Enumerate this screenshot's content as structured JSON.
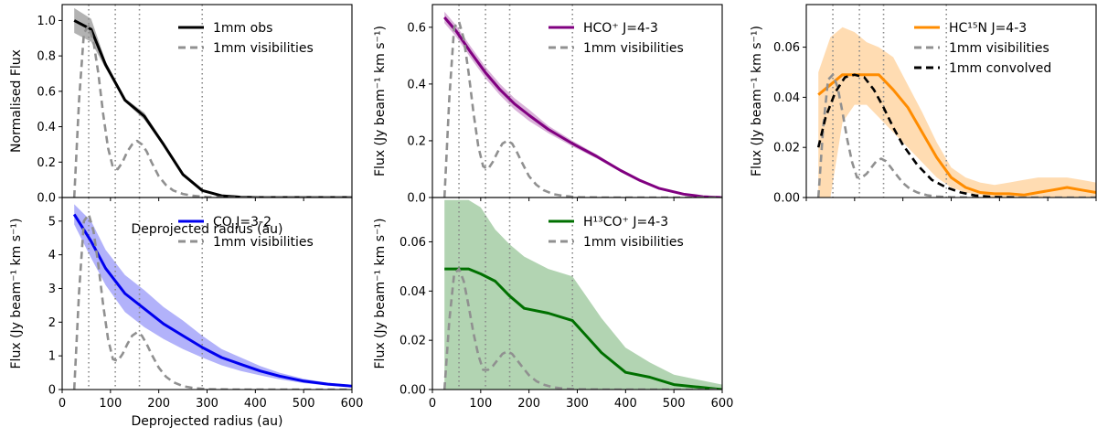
{
  "chart_data": [
    {
      "id": "obs",
      "type": "line",
      "xlabel": "Deprojected radius (au)",
      "ylabel": "Normalised Flux",
      "xlim": [
        0,
        600
      ],
      "ylim": [
        0,
        1.09
      ],
      "yticks": [
        0.0,
        0.2,
        0.4,
        0.6,
        0.8,
        1.0
      ],
      "ytick_labels": [
        "0.0",
        "0.2",
        "0.4",
        "0.6",
        "0.8",
        "1.0"
      ],
      "vlines": [
        55,
        110,
        160,
        290
      ],
      "legend": "top-right",
      "series": [
        {
          "name": "1mm obs",
          "color": "#000000",
          "style": "solid",
          "x": [
            25,
            60,
            90,
            130,
            170,
            210,
            250,
            290,
            330,
            370,
            410,
            450,
            500,
            550,
            600
          ],
          "y": [
            1.0,
            0.95,
            0.75,
            0.55,
            0.46,
            0.3,
            0.13,
            0.04,
            0.01,
            0.002,
            0,
            0,
            0,
            0,
            0
          ],
          "lo": [
            0.93,
            0.88,
            0.73,
            0.54,
            0.44,
            0.29,
            0.12,
            0.035,
            0.008,
            0.001,
            0,
            0,
            0,
            0,
            0
          ],
          "hi": [
            1.07,
            1.01,
            0.77,
            0.56,
            0.48,
            0.31,
            0.14,
            0.045,
            0.012,
            0.003,
            0,
            0,
            0,
            0,
            0
          ]
        },
        {
          "name": "1mm visibilities",
          "color": "#909090",
          "style": "dashed",
          "x": [
            25,
            35,
            45,
            55,
            65,
            75,
            85,
            95,
            105,
            115,
            125,
            135,
            145,
            155,
            165,
            175,
            185,
            200,
            215,
            230,
            250,
            270,
            300,
            350,
            400,
            600
          ],
          "y": [
            0.0,
            0.55,
            0.93,
            0.97,
            0.88,
            0.7,
            0.47,
            0.28,
            0.17,
            0.16,
            0.2,
            0.26,
            0.3,
            0.32,
            0.3,
            0.26,
            0.2,
            0.12,
            0.07,
            0.04,
            0.02,
            0.01,
            0.002,
            0,
            0,
            0
          ]
        }
      ]
    },
    {
      "id": "co",
      "type": "line",
      "xlabel": "Deprojected radius (au)",
      "ylabel": "Flux (Jy beam⁻¹ km s⁻¹)",
      "xlim": [
        0,
        600
      ],
      "ylim": [
        0,
        5.7
      ],
      "yticks": [
        0,
        1,
        2,
        3,
        4,
        5
      ],
      "ytick_labels": [
        "0",
        "1",
        "2",
        "3",
        "4",
        "5"
      ],
      "xticks": [
        0,
        100,
        200,
        300,
        400,
        500,
        600
      ],
      "xtick_labels": [
        "0",
        "100",
        "200",
        "300",
        "400",
        "500",
        "600"
      ],
      "vlines": [
        55,
        110,
        160,
        290
      ],
      "legend": "top-right",
      "series": [
        {
          "name": "CO J=3-2",
          "color": "#0000ee",
          "style": "solid",
          "x": [
            25,
            60,
            90,
            130,
            170,
            210,
            250,
            290,
            330,
            370,
            410,
            450,
            500,
            550,
            600
          ],
          "y": [
            5.2,
            4.4,
            3.6,
            2.85,
            2.4,
            1.95,
            1.6,
            1.25,
            0.95,
            0.75,
            0.55,
            0.4,
            0.25,
            0.16,
            0.1
          ],
          "lo": [
            4.9,
            3.9,
            3.1,
            2.3,
            1.85,
            1.5,
            1.2,
            0.95,
            0.72,
            0.55,
            0.42,
            0.3,
            0.19,
            0.12,
            0.07
          ],
          "hi": [
            5.5,
            5.0,
            4.15,
            3.4,
            2.95,
            2.45,
            2.05,
            1.6,
            1.2,
            0.95,
            0.7,
            0.5,
            0.32,
            0.2,
            0.13
          ]
        },
        {
          "name": "1mm visibilities",
          "color": "#909090",
          "style": "dashed",
          "x": [
            25,
            35,
            45,
            55,
            65,
            75,
            85,
            95,
            105,
            115,
            125,
            135,
            145,
            155,
            165,
            175,
            185,
            200,
            215,
            230,
            250,
            270,
            300,
            350,
            400,
            600
          ],
          "y": [
            0.0,
            2.9,
            5.0,
            5.2,
            4.7,
            3.7,
            2.5,
            1.5,
            0.9,
            0.85,
            1.05,
            1.35,
            1.6,
            1.7,
            1.6,
            1.35,
            1.05,
            0.65,
            0.38,
            0.22,
            0.1,
            0.05,
            0.01,
            0,
            0,
            0
          ]
        }
      ]
    },
    {
      "id": "hco",
      "type": "line",
      "xlabel": "",
      "ylabel": "Flux (Jy beam⁻¹ km s⁻¹)",
      "xlim": [
        0,
        600
      ],
      "ylim": [
        0,
        0.68
      ],
      "yticks": [
        0.0,
        0.2,
        0.4,
        0.6
      ],
      "ytick_labels": [
        "0.0",
        "0.2",
        "0.4",
        "0.6"
      ],
      "vlines": [
        55,
        110,
        160,
        290
      ],
      "legend": "top-right",
      "series": [
        {
          "name": "HCO⁺ J=4-3",
          "color": "#800080",
          "style": "solid",
          "x": [
            25,
            50,
            80,
            110,
            140,
            170,
            200,
            240,
            290,
            340,
            390,
            430,
            470,
            520,
            560,
            600
          ],
          "y": [
            0.635,
            0.585,
            0.51,
            0.44,
            0.38,
            0.33,
            0.29,
            0.24,
            0.19,
            0.145,
            0.095,
            0.06,
            0.032,
            0.012,
            0.003,
            0.0
          ],
          "lo": [
            0.615,
            0.565,
            0.49,
            0.42,
            0.36,
            0.31,
            0.27,
            0.227,
            0.18,
            0.138,
            0.09,
            0.055,
            0.029,
            0.01,
            0.002,
            0.0
          ],
          "hi": [
            0.655,
            0.605,
            0.53,
            0.46,
            0.4,
            0.35,
            0.31,
            0.253,
            0.2,
            0.152,
            0.1,
            0.065,
            0.035,
            0.014,
            0.004,
            0.0
          ]
        },
        {
          "name": "1mm visibilities",
          "color": "#909090",
          "style": "dashed",
          "x": [
            25,
            35,
            45,
            55,
            65,
            75,
            85,
            95,
            105,
            115,
            125,
            135,
            145,
            155,
            165,
            175,
            185,
            200,
            215,
            230,
            250,
            270,
            300,
            350,
            400,
            600
          ],
          "y": [
            0.0,
            0.35,
            0.6,
            0.62,
            0.56,
            0.44,
            0.3,
            0.18,
            0.11,
            0.1,
            0.125,
            0.16,
            0.19,
            0.2,
            0.19,
            0.16,
            0.125,
            0.075,
            0.045,
            0.026,
            0.012,
            0.006,
            0.001,
            0,
            0,
            0
          ]
        }
      ]
    },
    {
      "id": "h13co",
      "type": "line",
      "xlabel": "",
      "ylabel": "Flux (Jy beam⁻¹ km s⁻¹)",
      "xlim": [
        0,
        600
      ],
      "ylim": [
        0,
        0.078
      ],
      "yticks": [
        0.0,
        0.02,
        0.04,
        0.06
      ],
      "ytick_labels": [
        "0.00",
        "0.02",
        "0.04",
        "0.06"
      ],
      "xticks": [
        0,
        100,
        200,
        300,
        400,
        500,
        600
      ],
      "xtick_labels": [
        "0",
        "100",
        "200",
        "300",
        "400",
        "500",
        "600"
      ],
      "vlines": [
        55,
        110,
        160,
        290
      ],
      "legend": "top-right",
      "series": [
        {
          "name": "H¹³CO⁺ J=4-3",
          "color": "#007000",
          "style": "solid",
          "x": [
            25,
            50,
            75,
            100,
            130,
            160,
            190,
            240,
            290,
            350,
            400,
            450,
            500,
            550,
            600
          ],
          "y": [
            0.049,
            0.049,
            0.049,
            0.047,
            0.044,
            0.038,
            0.033,
            0.031,
            0.028,
            0.015,
            0.007,
            0.005,
            0.002,
            0.001,
            0.0
          ],
          "lo": [
            0.0,
            0.0,
            0.0,
            0.0,
            0.0,
            0.0,
            0.0,
            0.0,
            0.0,
            0.0,
            0.0,
            0.0,
            0.0,
            0.0,
            0.0
          ],
          "hi": [
            0.077,
            0.077,
            0.077,
            0.074,
            0.065,
            0.059,
            0.054,
            0.049,
            0.046,
            0.029,
            0.017,
            0.011,
            0.006,
            0.004,
            0.002
          ]
        },
        {
          "name": "1mm visibilities",
          "color": "#909090",
          "style": "dashed",
          "x": [
            25,
            35,
            45,
            55,
            65,
            75,
            85,
            95,
            105,
            115,
            125,
            135,
            145,
            155,
            165,
            175,
            185,
            200,
            215,
            230,
            250,
            270,
            300,
            350,
            400,
            600
          ],
          "y": [
            0.0,
            0.028,
            0.047,
            0.049,
            0.044,
            0.034,
            0.023,
            0.014,
            0.008,
            0.008,
            0.0095,
            0.012,
            0.0145,
            0.0155,
            0.0145,
            0.012,
            0.0095,
            0.0058,
            0.0034,
            0.002,
            0.0009,
            0.0004,
            0.0001,
            0,
            0,
            0
          ]
        }
      ]
    },
    {
      "id": "hc15n",
      "type": "line",
      "xlabel": "",
      "ylabel": "Flux (Jy beam⁻¹ km s⁻¹)",
      "xlim": [
        0,
        600
      ],
      "ylim": [
        0,
        0.077
      ],
      "yticks": [
        0.0,
        0.02,
        0.04,
        0.06
      ],
      "ytick_labels": [
        "0.00",
        "0.02",
        "0.04",
        "0.06"
      ],
      "vlines": [
        55,
        110,
        160,
        290
      ],
      "legend": "top-right",
      "series": [
        {
          "name": "HC¹⁵N J=4-3",
          "color": "#ff8c00",
          "style": "solid",
          "x": [
            25,
            50,
            75,
            100,
            125,
            150,
            180,
            210,
            240,
            270,
            300,
            330,
            360,
            390,
            420,
            450,
            480,
            510,
            540,
            570,
            600
          ],
          "y": [
            0.041,
            0.045,
            0.049,
            0.049,
            0.049,
            0.049,
            0.043,
            0.036,
            0.026,
            0.016,
            0.008,
            0.004,
            0.002,
            0.0015,
            0.0015,
            0.001,
            0.002,
            0.003,
            0.004,
            0.003,
            0.002
          ],
          "lo": [
            0.0,
            0.0,
            0.03,
            0.037,
            0.037,
            0.032,
            0.026,
            0.02,
            0.014,
            0.008,
            0.004,
            0.002,
            0.001,
            0.0,
            0.0,
            0.0,
            0.0,
            0.0,
            0.0,
            0.0,
            0.0
          ],
          "hi": [
            0.05,
            0.064,
            0.068,
            0.066,
            0.062,
            0.06,
            0.056,
            0.045,
            0.034,
            0.022,
            0.012,
            0.008,
            0.006,
            0.005,
            0.006,
            0.007,
            0.008,
            0.008,
            0.008,
            0.007,
            0.006
          ]
        },
        {
          "name": "1mm visibilities",
          "color": "#909090",
          "style": "dashed",
          "x": [
            25,
            35,
            45,
            55,
            65,
            75,
            85,
            95,
            105,
            115,
            125,
            135,
            145,
            155,
            165,
            175,
            185,
            200,
            215,
            230,
            250,
            270,
            300,
            350,
            400,
            600
          ],
          "y": [
            0.0,
            0.028,
            0.047,
            0.049,
            0.044,
            0.034,
            0.023,
            0.014,
            0.008,
            0.008,
            0.0095,
            0.012,
            0.0145,
            0.0155,
            0.0145,
            0.012,
            0.0095,
            0.0058,
            0.0034,
            0.002,
            0.0009,
            0.0004,
            0.0001,
            0,
            0,
            0
          ]
        },
        {
          "name": "1mm convolved",
          "color": "#000000",
          "style": "dashed",
          "x": [
            25,
            40,
            60,
            80,
            100,
            120,
            140,
            160,
            180,
            200,
            230,
            260,
            290,
            320,
            350,
            380,
            410,
            440
          ],
          "y": [
            0.02,
            0.032,
            0.042,
            0.048,
            0.049,
            0.048,
            0.043,
            0.036,
            0.028,
            0.021,
            0.013,
            0.007,
            0.004,
            0.002,
            0.0008,
            0.0003,
            0.0001,
            0.0
          ]
        }
      ]
    }
  ]
}
